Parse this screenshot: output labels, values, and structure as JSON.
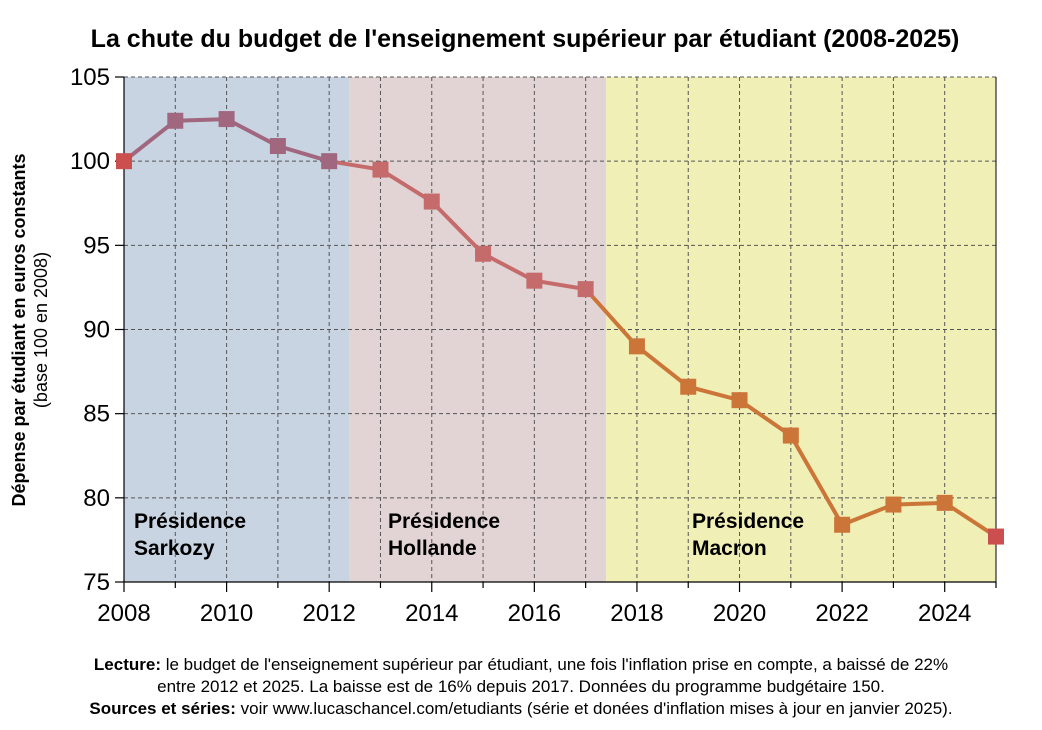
{
  "chart_data": {
    "type": "line",
    "title": "La chute du budget de l'enseignement supérieur par étudiant (2008-2025)",
    "ylabel": "Dépense par étudiant en euros constants",
    "ylabel_sub": "(base 100 en 2008)",
    "xlabel": "",
    "xlim": [
      2008,
      2025
    ],
    "ylim": [
      75,
      105
    ],
    "x_ticks": [
      2008,
      2010,
      2012,
      2014,
      2016,
      2018,
      2020,
      2022,
      2024
    ],
    "y_ticks": [
      75,
      80,
      85,
      90,
      95,
      100,
      105
    ],
    "grid": true,
    "x": [
      2008,
      2009,
      2010,
      2011,
      2012,
      2013,
      2014,
      2015,
      2016,
      2017,
      2018,
      2019,
      2020,
      2021,
      2022,
      2023,
      2024,
      2025
    ],
    "series": [
      {
        "values": [
          100.0,
          102.4,
          102.5,
          100.9,
          100.0,
          99.5,
          97.6,
          94.5,
          92.9,
          92.4,
          89.0,
          86.6,
          85.8,
          83.7,
          78.4,
          79.6,
          79.7,
          77.7
        ]
      }
    ],
    "periods": [
      {
        "label_line1": "Présidence",
        "label_line2": "Sarkozy",
        "start": 2008,
        "end": 2012.4,
        "color": "#c9d4e2"
      },
      {
        "label_line1": "Présidence",
        "label_line2": "Hollande",
        "start": 2012.4,
        "end": 2017.4,
        "color": "#e2d4d4"
      },
      {
        "label_line1": "Présidence",
        "label_line2": "Macron",
        "start": 2017.4,
        "end": 2025,
        "color": "#f0efb5"
      }
    ],
    "colors": {
      "sarkozy_line": "#a0677f",
      "hollande_line": "#c56b6b",
      "macron_line": "#cc7538",
      "endpoint_marker": "#cc4f4f",
      "grid": "#555555"
    }
  },
  "footer": {
    "line1_bold": "Lecture:",
    "line1_text": " le budget de l'enseignement supérieur par étudiant, une fois l'inflation prise en compte, a baissé de 22%",
    "line2_text": "entre 2012 et 2025. La baisse est de 16% depuis 2017. Données du programme budgétaire 150.",
    "line3_bold": "Sources et séries:",
    "line3_text": " voir www.lucaschancel.com/etudiants (série et donées d'inflation mises à jour en janvier 2025)."
  }
}
